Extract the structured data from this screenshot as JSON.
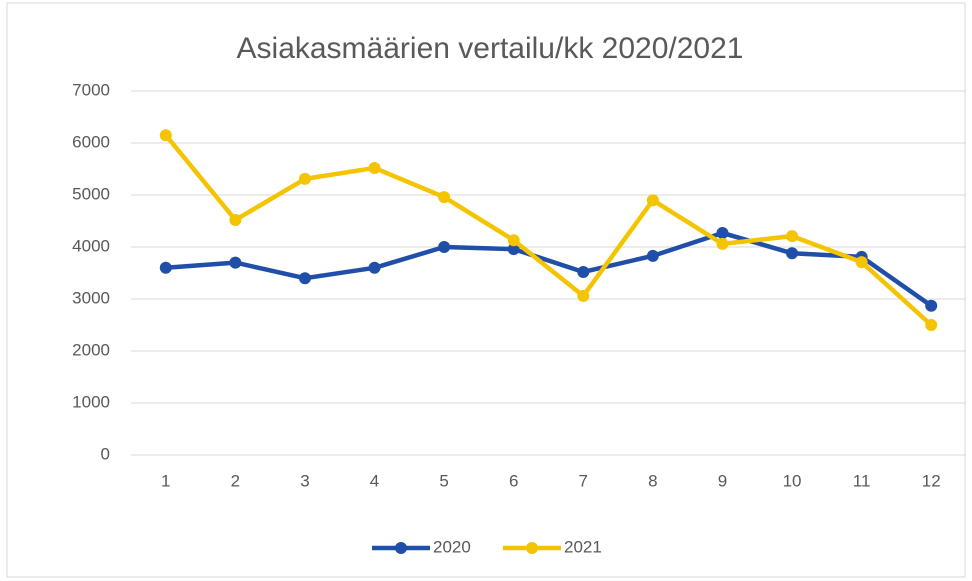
{
  "chart_data": {
    "type": "line",
    "title": "Asiakasmäärien vertailu/kk 2020/2021",
    "categories": [
      "1",
      "2",
      "3",
      "4",
      "5",
      "6",
      "7",
      "8",
      "9",
      "10",
      "11",
      "12"
    ],
    "series": [
      {
        "name": "2020",
        "color": "#1f4fa8",
        "values": [
          3600,
          3700,
          3400,
          3600,
          4000,
          3960,
          3520,
          3830,
          4270,
          3880,
          3810,
          2870
        ]
      },
      {
        "name": "2021",
        "color": "#f5c400",
        "values": [
          6150,
          4520,
          5310,
          5520,
          4960,
          4130,
          3060,
          4900,
          4060,
          4210,
          3710,
          2500
        ]
      }
    ],
    "ylim": [
      0,
      7000
    ],
    "yticks": [
      0,
      1000,
      2000,
      3000,
      4000,
      5000,
      6000,
      7000
    ],
    "grid": true,
    "legend": "bottom"
  }
}
